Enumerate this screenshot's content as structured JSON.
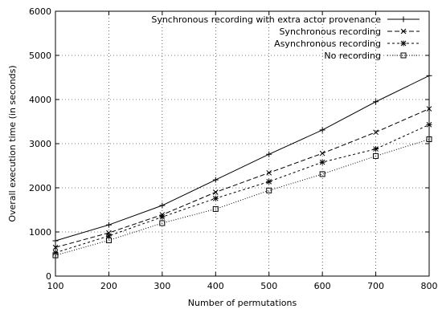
{
  "chart_data": {
    "type": "line",
    "title": "",
    "xlabel": "Number of permutations",
    "ylabel": "Overall execution time (in seconds)",
    "x": [
      100,
      200,
      300,
      400,
      500,
      600,
      700,
      800
    ],
    "xlim": [
      100,
      800
    ],
    "ylim": [
      0,
      6000
    ],
    "xticks": [
      100,
      200,
      300,
      400,
      500,
      600,
      700,
      800
    ],
    "yticks": [
      0,
      1000,
      2000,
      3000,
      4000,
      5000,
      6000
    ],
    "grid": true,
    "legend_position": "top-right",
    "series": [
      {
        "name": "Synchronous recording with extra actor provenance",
        "marker": "plus",
        "dash": "solid",
        "values": [
          800,
          1160,
          1600,
          2180,
          2760,
          3310,
          3950,
          4540
        ]
      },
      {
        "name": "Synchronous recording",
        "marker": "cross",
        "dash": "dashed",
        "values": [
          650,
          980,
          1390,
          1900,
          2340,
          2780,
          3260,
          3790
        ]
      },
      {
        "name": "Asynchronous recording",
        "marker": "star",
        "dash": "short-dashed",
        "values": [
          530,
          910,
          1340,
          1760,
          2140,
          2580,
          2880,
          3430
        ]
      },
      {
        "name": "No recording",
        "marker": "square",
        "dash": "dotted",
        "values": [
          470,
          810,
          1200,
          1520,
          1940,
          2310,
          2720,
          3100
        ]
      }
    ]
  }
}
